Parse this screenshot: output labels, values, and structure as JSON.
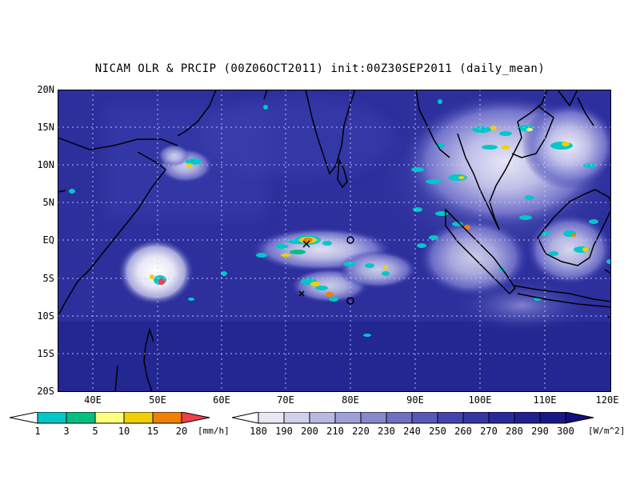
{
  "title": "NICAM OLR & PRCIP (00Z06OCT2011) init:00Z30SEP2011 (daily_mean)",
  "map": {
    "lat_labels": [
      "20N",
      "15N",
      "10N",
      "5N",
      "EQ",
      "5S",
      "10S",
      "15S",
      "20S"
    ],
    "lon_labels": [
      "40E",
      "50E",
      "60E",
      "70E",
      "80E",
      "90E",
      "100E",
      "110E",
      "120E"
    ],
    "lon_range": [
      35,
      120
    ],
    "lat_range": [
      -20,
      20
    ],
    "ocean_color": "#2a2f9e",
    "coast_color": "#000000",
    "grid": true,
    "markers": [
      {
        "type": "circle",
        "lon": 80,
        "lat": 0
      },
      {
        "type": "circle",
        "lon": 80,
        "lat": -8
      },
      {
        "type": "cross",
        "lon": 73,
        "lat": -1
      },
      {
        "type": "cross",
        "lon": 72.5,
        "lat": -7.5
      }
    ]
  },
  "precip_legend": {
    "labels": [
      "1",
      "3",
      "5",
      "10",
      "15",
      "20"
    ],
    "unit": "[mm/h]",
    "colors": [
      "#00c8c8",
      "#00c080",
      "#ffff80",
      "#f0d000",
      "#f08000",
      "#f04050"
    ]
  },
  "olr_legend": {
    "labels": [
      "180",
      "190",
      "200",
      "210",
      "220",
      "230",
      "240",
      "250",
      "260",
      "270",
      "280",
      "290",
      "300"
    ],
    "unit": "[W/m^2]",
    "colors": [
      "#ffffff",
      "#e8e8f4",
      "#d0d0ea",
      "#b8b8e0",
      "#a0a0d6",
      "#8888cc",
      "#7070c2",
      "#5858b8",
      "#4444ae",
      "#3535a4",
      "#2a2a9a",
      "#202090",
      "#181886",
      "#10107c"
    ]
  }
}
